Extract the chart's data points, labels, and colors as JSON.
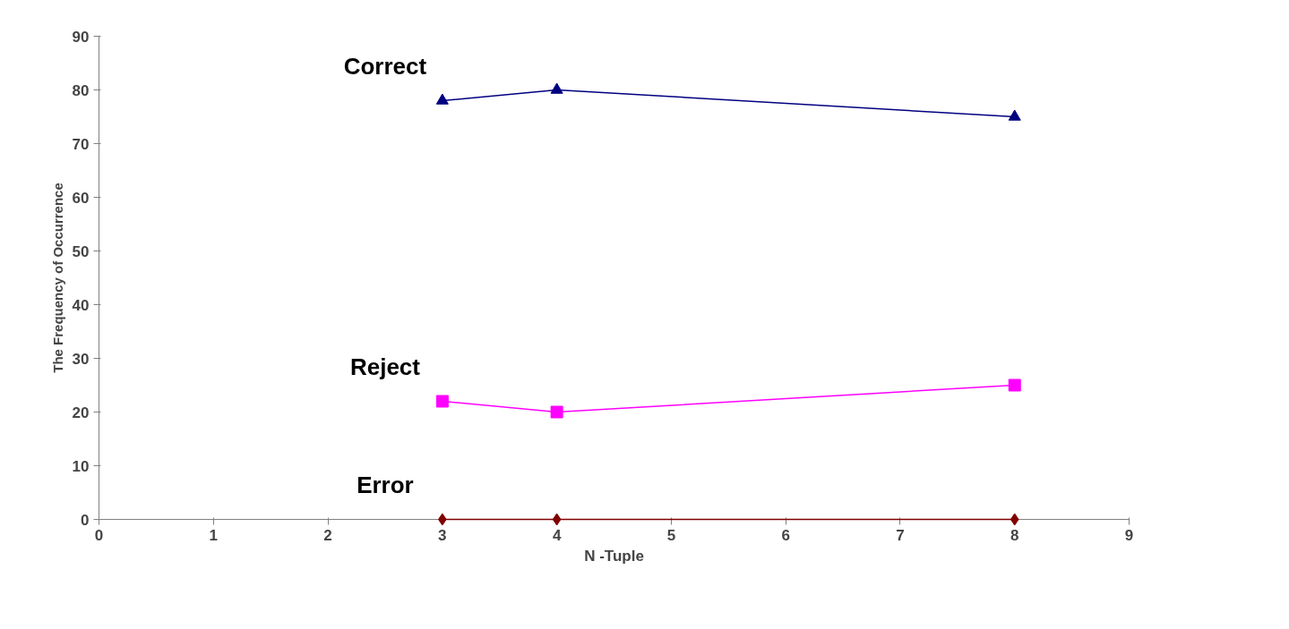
{
  "chart_data": {
    "type": "line",
    "xlabel": "N -Tuple",
    "ylabel": "The Frequency of Occurrence",
    "x": [
      3,
      4,
      8
    ],
    "series": [
      {
        "name": "Correct",
        "color": "#000080",
        "values": [
          78,
          80,
          75
        ],
        "marker": "triangle"
      },
      {
        "name": "Reject",
        "color": "#ff00ff",
        "values": [
          22,
          20,
          25
        ],
        "marker": "square"
      },
      {
        "name": "Error",
        "color": "#800000",
        "values": [
          0,
          0,
          0
        ],
        "marker": "diamond"
      }
    ],
    "xlim": [
      0,
      9
    ],
    "xticks": [
      0,
      1,
      2,
      3,
      4,
      5,
      6,
      7,
      8,
      9
    ],
    "ylim": [
      0,
      90
    ],
    "yticks": [
      0,
      10,
      20,
      30,
      40,
      50,
      60,
      70,
      80,
      90
    ],
    "grid": false,
    "line_style": "solid"
  }
}
